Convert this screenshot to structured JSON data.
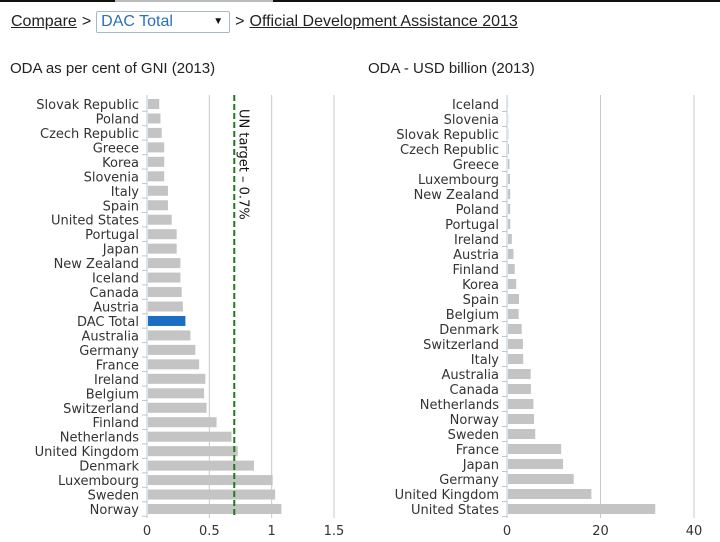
{
  "breadcrumb": {
    "compare": "Compare",
    "sep": ">",
    "selected": "DAC Total",
    "page": "Official Development Assistance 2013"
  },
  "colors": {
    "bar": "#c4c4c4",
    "highlight": "#1a6fc4",
    "target_line": "#1f7a1f",
    "grid": "#c8c8c8",
    "axis": "#b8c8d8"
  },
  "chart_data": [
    {
      "type": "bar",
      "orientation": "horizontal",
      "title": "ODA as per cent of GNI (2013)",
      "categories": [
        "Slovak Republic",
        "Poland",
        "Czech Republic",
        "Greece",
        "Korea",
        "Slovenia",
        "Italy",
        "Spain",
        "United States",
        "Portugal",
        "Japan",
        "New Zealand",
        "Iceland",
        "Canada",
        "Austria",
        "DAC Total",
        "Australia",
        "Germany",
        "France",
        "Ireland",
        "Belgium",
        "Switzerland",
        "Finland",
        "Netherlands",
        "United Kingdom",
        "Denmark",
        "Luxembourg",
        "Sweden",
        "Norway"
      ],
      "values": [
        0.09,
        0.1,
        0.11,
        0.13,
        0.13,
        0.13,
        0.16,
        0.16,
        0.19,
        0.23,
        0.23,
        0.26,
        0.26,
        0.27,
        0.28,
        0.3,
        0.34,
        0.38,
        0.41,
        0.46,
        0.45,
        0.47,
        0.55,
        0.67,
        0.72,
        0.85,
        1.0,
        1.02,
        1.07
      ],
      "highlight": "DAC Total",
      "xlim": [
        0,
        1.5
      ],
      "xticks": [
        "0",
        "0.5",
        "1",
        "1.5"
      ],
      "grid": true,
      "reference_line": {
        "value": 0.7,
        "label": "UN target – 0.7%"
      }
    },
    {
      "type": "bar",
      "orientation": "horizontal",
      "title": "ODA - USD billion (2013)",
      "categories": [
        "Iceland",
        "Slovenia",
        "Slovak Republic",
        "Czech Republic",
        "Greece",
        "Luxembourg",
        "New Zealand",
        "Poland",
        "Portugal",
        "Ireland",
        "Austria",
        "Finland",
        "Korea",
        "Spain",
        "Belgium",
        "Denmark",
        "Switzerland",
        "Italy",
        "Australia",
        "Canada",
        "Netherlands",
        "Norway",
        "Sweden",
        "France",
        "Japan",
        "Germany",
        "United Kingdom",
        "United States"
      ],
      "values": [
        0.04,
        0.06,
        0.09,
        0.21,
        0.31,
        0.43,
        0.46,
        0.47,
        0.48,
        0.82,
        1.17,
        1.44,
        1.76,
        2.35,
        2.28,
        2.93,
        3.2,
        3.25,
        4.85,
        4.91,
        5.44,
        5.58,
        5.83,
        11.38,
        11.79,
        14.06,
        17.83,
        31.5
      ],
      "xlim": [
        0,
        40
      ],
      "xticks": [
        "0",
        "20",
        "40"
      ],
      "grid": true
    }
  ]
}
